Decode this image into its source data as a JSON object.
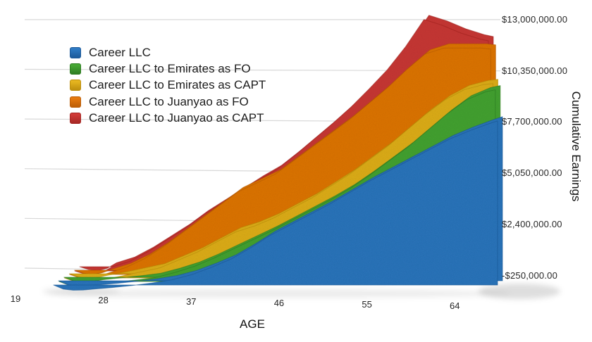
{
  "chart_data": {
    "type": "area",
    "style": "3d-layered-area",
    "title": "",
    "xlabel": "AGE",
    "ylabel": "Cumulative Earnings",
    "xlim": [
      19,
      68
    ],
    "ylim": [
      -250000,
      13000000
    ],
    "grid": "horizontal",
    "legend_position": "top-left",
    "x_ticks": [
      {
        "label": "19",
        "value": 19
      },
      {
        "label": "28",
        "value": 28
      },
      {
        "label": "37",
        "value": 37
      },
      {
        "label": "46",
        "value": 46
      },
      {
        "label": "55",
        "value": 55
      },
      {
        "label": "64",
        "value": 64
      }
    ],
    "y_ticks": [
      {
        "label": "$13,000,000.00",
        "value": 13000000
      },
      {
        "label": "$10,350,000.00",
        "value": 10350000
      },
      {
        "label": "$7,700,000.00",
        "value": 7700000
      },
      {
        "label": "$5,050,000.00",
        "value": 5050000
      },
      {
        "label": "$2,400,000.00",
        "value": 2400000
      },
      {
        "label": "-$250,000.00",
        "value": -250000
      }
    ],
    "x": [
      23,
      24,
      25,
      26,
      27,
      29,
      31,
      33,
      35,
      37,
      39,
      41,
      43,
      45,
      47,
      49,
      51,
      53,
      55,
      57,
      59,
      61,
      63,
      65,
      67,
      68
    ],
    "series": [
      {
        "name": "Career LLC",
        "color": "#2E79C2",
        "color_dark": "#1D5A9A",
        "values": [
          0,
          -200000,
          -250000,
          -240000,
          -200000,
          -120000,
          -20000,
          100000,
          250000,
          500000,
          850000,
          1250000,
          1800000,
          2400000,
          2900000,
          3400000,
          3900000,
          4450000,
          5000000,
          5500000,
          6000000,
          6500000,
          7000000,
          7400000,
          7750000,
          7900000
        ]
      },
      {
        "name": "Career LLC to Emirates as FO",
        "color": "#47A835",
        "color_dark": "#2F7D22",
        "values": [
          0,
          -180000,
          -230000,
          -200000,
          -120000,
          -20000,
          80000,
          200000,
          450000,
          750000,
          1150000,
          1600000,
          2050000,
          2500000,
          3000000,
          3500000,
          4000000,
          4550000,
          5200000,
          5900000,
          6600000,
          7400000,
          8200000,
          8900000,
          9300000,
          9400000
        ]
      },
      {
        "name": "Career LLC to Emirates as CAPT",
        "color": "#E5B41F",
        "color_dark": "#BD8F0E",
        "values": [
          0,
          -170000,
          -220000,
          -180000,
          -80000,
          100000,
          300000,
          500000,
          900000,
          1300000,
          1800000,
          2300000,
          2600000,
          3000000,
          3500000,
          4000000,
          4600000,
          5200000,
          5900000,
          6600000,
          7400000,
          8200000,
          8900000,
          9400000,
          9650000,
          9700000
        ]
      },
      {
        "name": "Career LLC to Juanyao as FO",
        "color": "#E5790F",
        "color_dark": "#BC5E07",
        "values": [
          0,
          -160000,
          -200000,
          -120000,
          50000,
          350000,
          800000,
          1400000,
          2100000,
          2800000,
          3500000,
          4200000,
          4650000,
          5100000,
          5800000,
          6500000,
          7200000,
          7900000,
          8700000,
          9500000,
          10400000,
          11200000,
          11500000,
          11500000,
          11500000,
          11450000
        ]
      },
      {
        "name": "Career LLC to Juanyao as CAPT",
        "color": "#CF3A37",
        "color_dark": "#A62825",
        "values": [
          0,
          -150000,
          -200000,
          -80000,
          200000,
          500000,
          1000000,
          1600000,
          2200000,
          2900000,
          3500000,
          4100000,
          4700000,
          5250000,
          6000000,
          6800000,
          7600000,
          8450000,
          9400000,
          10400000,
          11600000,
          13000000,
          12700000,
          12300000,
          12000000,
          11900000
        ]
      }
    ]
  }
}
